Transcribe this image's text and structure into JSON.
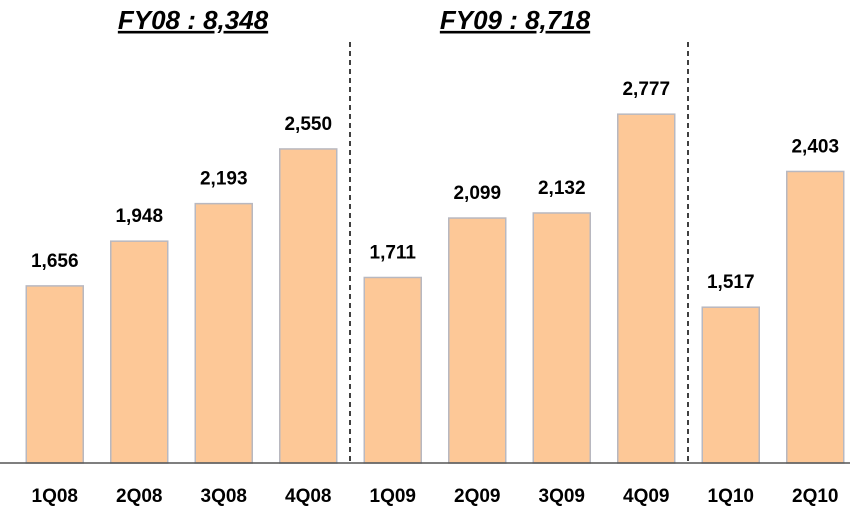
{
  "chart_data": {
    "type": "bar",
    "annotations": [
      "FY08 : 8,348",
      "FY09 : 8,718"
    ],
    "categories": [
      "1Q08",
      "2Q08",
      "3Q08",
      "4Q08",
      "1Q09",
      "2Q09",
      "3Q09",
      "4Q09",
      "1Q10",
      "2Q10"
    ],
    "values": [
      1656,
      1948,
      2193,
      2550,
      1711,
      2099,
      2132,
      2777,
      1517,
      2403
    ],
    "value_labels": [
      "1,656",
      "1,948",
      "2,193",
      "2,550",
      "1,711",
      "2,099",
      "2,132",
      "2,777",
      "1,517",
      "2,403"
    ],
    "color": "#fdc897",
    "ylim": [
      500,
      3000
    ]
  }
}
